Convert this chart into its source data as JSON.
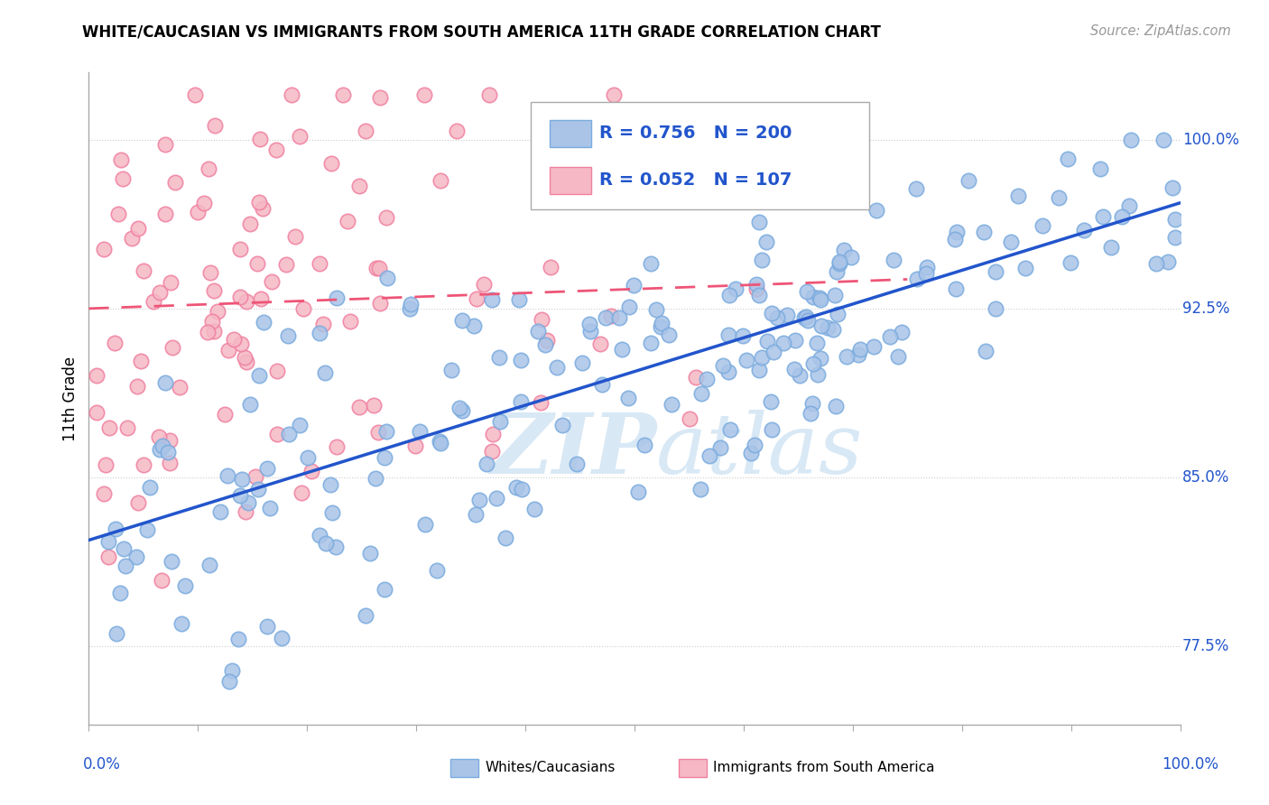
{
  "title": "WHITE/CAUCASIAN VS IMMIGRANTS FROM SOUTH AMERICA 11TH GRADE CORRELATION CHART",
  "source": "Source: ZipAtlas.com",
  "ylabel": "11th Grade",
  "y_ticks": [
    0.775,
    0.85,
    0.925,
    1.0
  ],
  "y_tick_labels": [
    "77.5%",
    "85.0%",
    "92.5%",
    "100.0%"
  ],
  "x_range": [
    0.0,
    1.0
  ],
  "y_range": [
    0.74,
    1.03
  ],
  "blue_R": 0.756,
  "blue_N": 200,
  "pink_R": 0.052,
  "pink_N": 107,
  "blue_color": "#aac4e8",
  "blue_edge_color": "#7aabde",
  "pink_color": "#f5b8c4",
  "pink_edge_color": "#f080a0",
  "blue_line_color": "#2255cc",
  "pink_line_color": "#ee5577",
  "watermark_color": "#d8e8f5",
  "grid_color": "#cccccc",
  "legend_label_blue": "Whites/Caucasians",
  "legend_label_pink": "Immigrants from South America",
  "blue_trend_x": [
    0.0,
    1.0
  ],
  "blue_trend_y": [
    0.822,
    0.972
  ],
  "pink_trend_x": [
    0.0,
    0.75
  ],
  "pink_trend_y": [
    0.925,
    0.938
  ],
  "seed": 77
}
